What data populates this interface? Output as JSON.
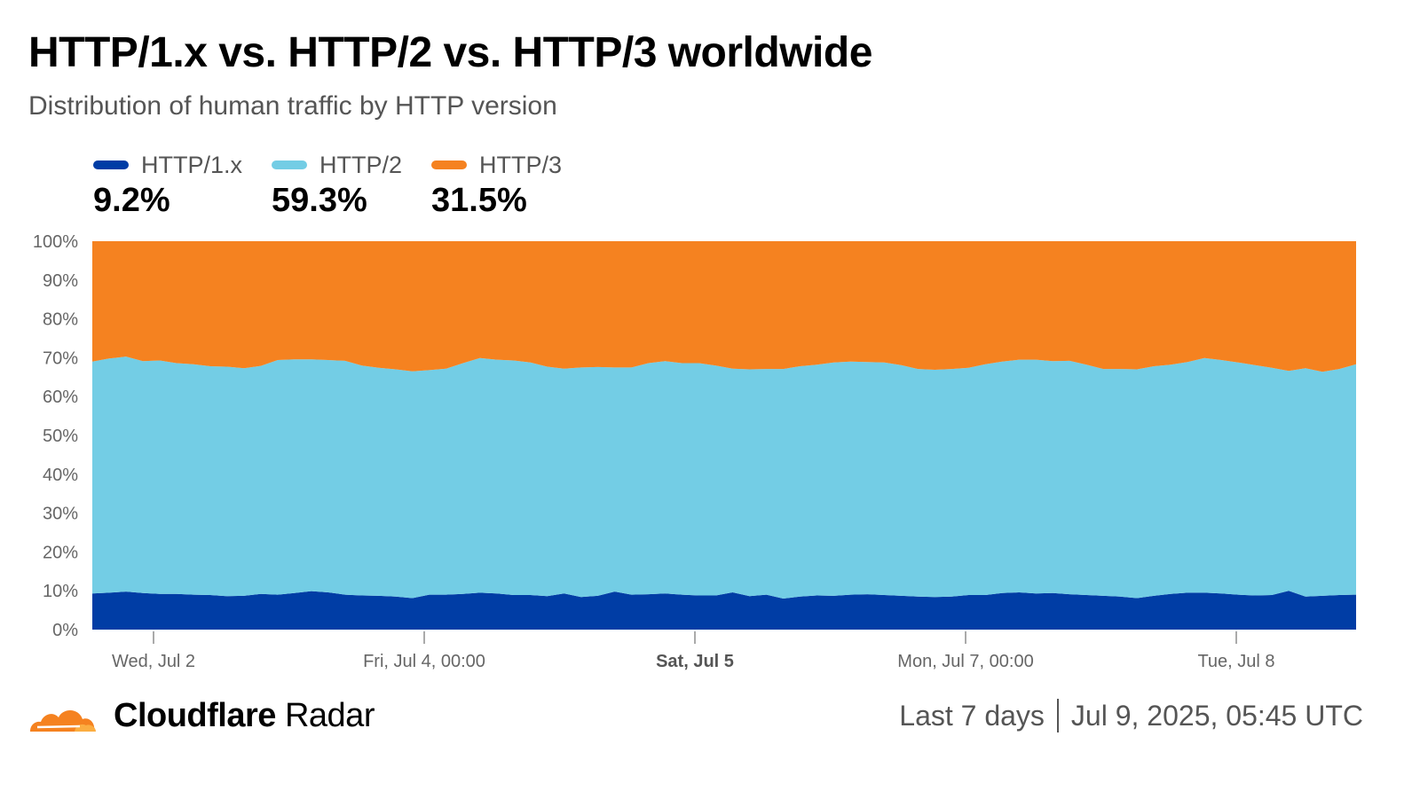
{
  "header": {
    "title": "HTTP/1.x vs. HTTP/2 vs. HTTP/3 worldwide",
    "subtitle": "Distribution of human traffic by HTTP version"
  },
  "legend": [
    {
      "label": "HTTP/1.x",
      "value": "9.2%",
      "color": "#003da5"
    },
    {
      "label": "HTTP/2",
      "value": "59.3%",
      "color": "#73cde5"
    },
    {
      "label": "HTTP/3",
      "value": "31.5%",
      "color": "#f58220"
    }
  ],
  "footer": {
    "brand_bold": "Cloudflare",
    "brand_light": "Radar",
    "range": "Last 7 days",
    "timestamp": "Jul 9, 2025, 05:45 UTC",
    "logo_icon": "cloudflare-cloud-icon"
  },
  "chart_data": {
    "type": "area",
    "stacked": true,
    "x_start": "Jul 2, 2025",
    "x_end": "Jul 9, 2025",
    "xticks": [
      {
        "label": "Wed, Jul 2",
        "bold": false
      },
      {
        "label": "Fri, Jul 4, 00:00",
        "bold": false
      },
      {
        "label": "Sat, Jul 5",
        "bold": true
      },
      {
        "label": "Mon, Jul 7, 00:00",
        "bold": false
      },
      {
        "label": "Tue, Jul 8",
        "bold": false
      }
    ],
    "yticks": [
      "0%",
      "10%",
      "20%",
      "30%",
      "40%",
      "50%",
      "60%",
      "70%",
      "80%",
      "90%",
      "100%"
    ],
    "ylim": [
      0,
      100
    ],
    "series": [
      {
        "name": "HTTP/1.x",
        "color": "#003da5",
        "values": [
          9.3,
          9.5,
          9.8,
          9.4,
          9.2,
          9.2,
          9.0,
          8.9,
          8.6,
          8.7,
          9.2,
          9.0,
          9.4,
          9.9,
          9.6,
          9.0,
          8.8,
          8.7,
          8.5,
          8.1,
          9.0,
          9.0,
          9.2,
          9.5,
          9.3,
          8.9,
          8.9,
          8.6,
          9.3,
          8.4,
          8.7,
          9.8,
          9.0,
          9.1,
          9.3,
          9.0,
          8.8,
          8.8,
          9.6,
          8.6,
          9.0,
          8.0,
          8.5,
          8.8,
          8.7,
          9.0,
          9.1,
          8.9,
          8.7,
          8.5,
          8.4,
          8.5,
          8.9,
          8.9,
          9.4,
          9.6,
          9.3,
          9.4,
          9.1,
          8.9,
          8.7,
          8.5,
          8.1,
          8.7,
          9.2,
          9.5,
          9.5,
          9.3,
          9.0,
          8.8,
          8.9,
          10.0,
          8.5,
          8.7,
          8.9,
          9.0
        ]
      },
      {
        "name": "HTTP/2",
        "color": "#73cde5",
        "values": [
          59.7,
          60.3,
          60.5,
          59.7,
          60.1,
          59.4,
          59.3,
          58.9,
          59.1,
          58.6,
          58.7,
          60.4,
          60.2,
          59.7,
          59.8,
          60.2,
          59.2,
          58.7,
          58.5,
          58.4,
          57.8,
          58.2,
          59.4,
          60.4,
          60.2,
          60.4,
          59.9,
          59.1,
          57.9,
          59.1,
          58.9,
          57.7,
          58.5,
          59.5,
          59.8,
          59.6,
          59.8,
          59.2,
          57.6,
          58.4,
          58.1,
          59.1,
          59.3,
          59.4,
          60.1,
          60.0,
          59.8,
          59.9,
          59.4,
          58.6,
          58.5,
          58.6,
          58.5,
          59.4,
          59.6,
          59.9,
          60.2,
          59.7,
          60.1,
          59.3,
          58.4,
          58.6,
          58.9,
          59.1,
          59.0,
          59.4,
          60.4,
          60.1,
          59.8,
          59.3,
          58.5,
          56.6,
          58.8,
          57.7,
          58.2,
          59.3
        ]
      },
      {
        "name": "HTTP/3",
        "color": "#f58220",
        "values": [
          31.0,
          30.2,
          29.7,
          30.9,
          30.7,
          31.4,
          31.7,
          32.2,
          32.3,
          32.7,
          32.1,
          30.6,
          30.4,
          30.4,
          30.6,
          30.8,
          32.0,
          32.6,
          33.0,
          33.5,
          33.2,
          32.8,
          31.4,
          30.1,
          30.5,
          30.7,
          31.2,
          32.3,
          32.8,
          32.5,
          32.4,
          32.5,
          32.5,
          31.4,
          30.9,
          31.4,
          31.4,
          32.0,
          32.8,
          33.0,
          32.9,
          32.9,
          32.2,
          31.8,
          31.2,
          31.0,
          31.1,
          31.2,
          31.9,
          32.9,
          33.1,
          32.9,
          32.6,
          31.7,
          31.0,
          30.5,
          30.5,
          30.9,
          30.8,
          31.8,
          32.9,
          32.9,
          33.0,
          32.2,
          31.8,
          31.1,
          30.1,
          30.6,
          31.2,
          31.9,
          32.6,
          33.4,
          32.7,
          33.6,
          32.9,
          31.7
        ]
      }
    ],
    "legend_placement": "top-left",
    "grid": false
  }
}
